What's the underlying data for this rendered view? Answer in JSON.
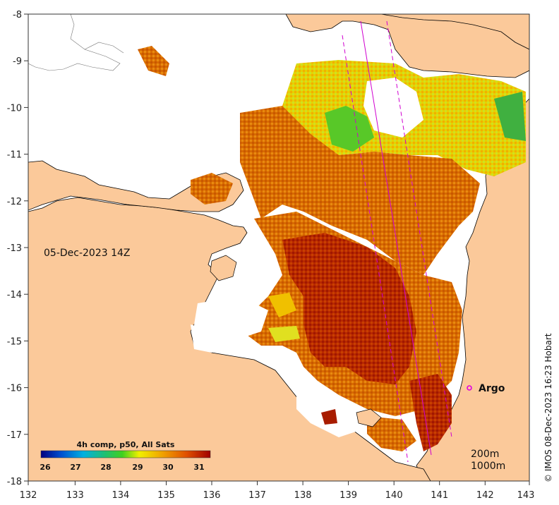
{
  "map": {
    "lon_ticks": [
      "132",
      "133",
      "134",
      "135",
      "136",
      "137",
      "138",
      "139",
      "140",
      "141",
      "142",
      "143"
    ],
    "lat_ticks": [
      "-8",
      "-9",
      "-10",
      "-11",
      "-12",
      "-13",
      "-14",
      "-15",
      "-16",
      "-17",
      "-18"
    ],
    "timestamp": "05-Dec-2023 14Z",
    "argo_label": "Argo",
    "contour_labels": [
      "200m",
      "1000m"
    ],
    "credit": "© IMOS 08-Dec-2023 16:23 Hobart",
    "colorbar": {
      "title": "4h comp, p50, All Sats",
      "ticks": [
        "26",
        "27",
        "28",
        "29",
        "30",
        "31"
      ]
    },
    "colors": {
      "land": "#fbc99a",
      "ocean_nodata": "#ffffff",
      "sst_warm": "#b01000",
      "sst_mid": "#e07a00",
      "sst_cool": "#f0c800",
      "sst_cold": "#40c040",
      "track": "#d000d0",
      "argo": "#e000e0"
    }
  }
}
